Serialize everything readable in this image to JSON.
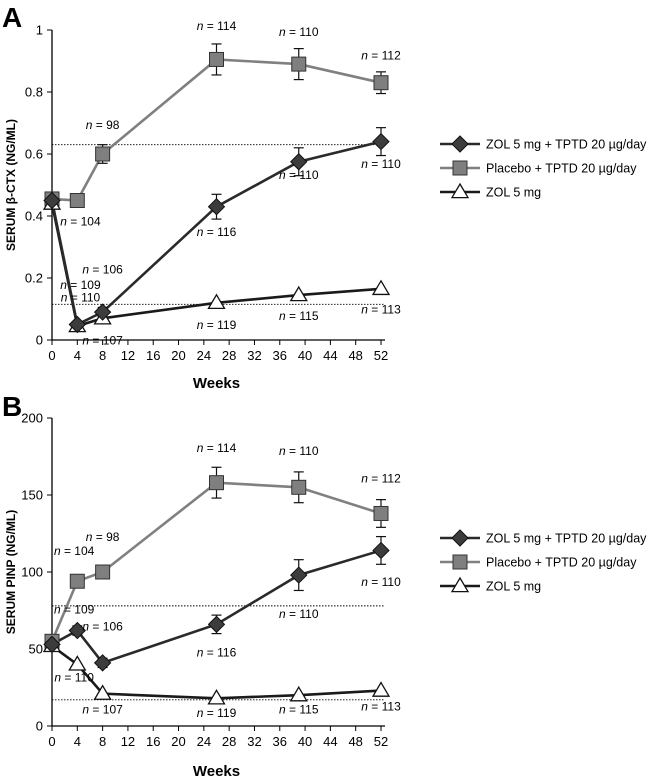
{
  "chart_data": [
    {
      "panel": "A",
      "type": "line",
      "xlabel": "Weeks",
      "ylabel": "SERUM β-CTX (NG/ML)",
      "xlim": [
        0,
        52
      ],
      "ylim": [
        0,
        1
      ],
      "xticks": [
        0,
        4,
        8,
        12,
        16,
        20,
        24,
        28,
        32,
        36,
        40,
        44,
        48,
        52
      ],
      "yticks": [
        "0",
        "0.2",
        "0.4",
        "0.6",
        "0.8",
        "1"
      ],
      "ytick_values": [
        0,
        0.2,
        0.4,
        0.6,
        0.8,
        1.0
      ],
      "reference_lines": [
        0.63,
        0.115
      ],
      "legend_position": "right",
      "series": [
        {
          "name": "ZOL 5 mg + TPTD 20 µg/day",
          "marker": "diamond",
          "color": "#3c3c3c",
          "line_color": "#2a2a2a",
          "points": [
            {
              "x": 0,
              "y": 0.45,
              "err": 0.02
            },
            {
              "x": 4,
              "y": 0.05,
              "err": 0.01
            },
            {
              "x": 8,
              "y": 0.09,
              "err": 0.015
            },
            {
              "x": 26,
              "y": 0.43,
              "err": 0.04
            },
            {
              "x": 39,
              "y": 0.575,
              "err": 0.045
            },
            {
              "x": 52,
              "y": 0.64,
              "err": 0.045
            }
          ]
        },
        {
          "name": "Placebo + TPTD 20 µg/day",
          "marker": "square",
          "color": "#7f7f7f",
          "line_color": "#808080",
          "points": [
            {
              "x": 0,
              "y": 0.455,
              "err": 0.02
            },
            {
              "x": 4,
              "y": 0.45,
              "err": 0.02
            },
            {
              "x": 8,
              "y": 0.6,
              "err": 0.03
            },
            {
              "x": 26,
              "y": 0.905,
              "err": 0.05
            },
            {
              "x": 39,
              "y": 0.89,
              "err": 0.05
            },
            {
              "x": 52,
              "y": 0.83,
              "err": 0.035
            }
          ]
        },
        {
          "name": "ZOL 5 mg",
          "marker": "triangle",
          "color": "#ffffff",
          "line_color": "#1a1a1a",
          "points": [
            {
              "x": 0,
              "y": 0.44,
              "err": 0
            },
            {
              "x": 4,
              "y": 0.045,
              "err": 0
            },
            {
              "x": 8,
              "y": 0.07,
              "err": 0
            },
            {
              "x": 26,
              "y": 0.12,
              "err": 0
            },
            {
              "x": 39,
              "y": 0.145,
              "err": 0
            },
            {
              "x": 52,
              "y": 0.165,
              "err": 0
            }
          ]
        }
      ],
      "annotations": [
        {
          "text": "n = 114",
          "x": 26,
          "y": 1.0
        },
        {
          "text": "n = 110",
          "x": 39,
          "y": 0.98
        },
        {
          "text": "n = 112",
          "x": 52,
          "y": 0.905
        },
        {
          "text": "n = 98",
          "x": 8,
          "y": 0.68
        },
        {
          "text": "n = 104",
          "x": 4.5,
          "y": 0.37
        },
        {
          "text": "n = 110",
          "x": 52,
          "y": 0.555
        },
        {
          "text": "n = 110",
          "x": 39,
          "y": 0.52
        },
        {
          "text": "n = 116",
          "x": 26,
          "y": 0.335
        },
        {
          "text": "n = 106",
          "x": 8,
          "y": 0.215
        },
        {
          "text": "n = 109",
          "x": 4.5,
          "y": 0.165
        },
        {
          "text": "n = 110",
          "x": 4.5,
          "y": 0.125
        },
        {
          "text": "n = 107",
          "x": 8,
          "y": -0.015
        },
        {
          "text": "n = 119",
          "x": 26,
          "y": 0.035
        },
        {
          "text": "n = 115",
          "x": 39,
          "y": 0.065
        },
        {
          "text": "n = 113",
          "x": 52,
          "y": 0.085
        }
      ]
    },
    {
      "panel": "B",
      "type": "line",
      "xlabel": "Weeks",
      "ylabel": "SERUM PINP (NG/ML)",
      "xlim": [
        0,
        52
      ],
      "ylim": [
        0,
        200
      ],
      "xticks": [
        0,
        4,
        8,
        12,
        16,
        20,
        24,
        28,
        32,
        36,
        40,
        44,
        48,
        52
      ],
      "yticks": [
        "0",
        "50",
        "100",
        "150",
        "200"
      ],
      "ytick_values": [
        0,
        50,
        100,
        150,
        200
      ],
      "reference_lines": [
        78,
        17
      ],
      "legend_position": "right",
      "series": [
        {
          "name": "ZOL 5 mg + TPTD 20 µg/day",
          "marker": "diamond",
          "color": "#3c3c3c",
          "line_color": "#2a2a2a",
          "points": [
            {
              "x": 0,
              "y": 53,
              "err": 3
            },
            {
              "x": 4,
              "y": 62,
              "err": 3
            },
            {
              "x": 8,
              "y": 41,
              "err": 3
            },
            {
              "x": 26,
              "y": 66,
              "err": 6
            },
            {
              "x": 39,
              "y": 98,
              "err": 10
            },
            {
              "x": 52,
              "y": 114,
              "err": 9
            }
          ]
        },
        {
          "name": "Placebo + TPTD 20 µg/day",
          "marker": "square",
          "color": "#7f7f7f",
          "line_color": "#808080",
          "points": [
            {
              "x": 0,
              "y": 55,
              "err": 3
            },
            {
              "x": 4,
              "y": 94,
              "err": 4
            },
            {
              "x": 8,
              "y": 100,
              "err": 4
            },
            {
              "x": 26,
              "y": 158,
              "err": 10
            },
            {
              "x": 39,
              "y": 155,
              "err": 10
            },
            {
              "x": 52,
              "y": 138,
              "err": 9
            }
          ]
        },
        {
          "name": "ZOL 5 mg",
          "marker": "triangle",
          "color": "#ffffff",
          "line_color": "#1a1a1a",
          "points": [
            {
              "x": 0,
              "y": 52,
              "err": 0
            },
            {
              "x": 4,
              "y": 40,
              "err": 0
            },
            {
              "x": 8,
              "y": 21,
              "err": 0
            },
            {
              "x": 26,
              "y": 18,
              "err": 0
            },
            {
              "x": 39,
              "y": 20,
              "err": 0
            },
            {
              "x": 52,
              "y": 23,
              "err": 0
            }
          ]
        }
      ],
      "annotations": [
        {
          "text": "n = 114",
          "x": 26,
          "y": 178
        },
        {
          "text": "n = 110",
          "x": 39,
          "y": 176
        },
        {
          "text": "n = 112",
          "x": 52,
          "y": 158
        },
        {
          "text": "n = 104",
          "x": 3.5,
          "y": 111
        },
        {
          "text": "n = 98",
          "x": 8,
          "y": 120
        },
        {
          "text": "n = 110",
          "x": 52,
          "y": 91
        },
        {
          "text": "n = 110",
          "x": 39,
          "y": 70
        },
        {
          "text": "n = 109",
          "x": 3.5,
          "y": 73
        },
        {
          "text": "n = 106",
          "x": 8,
          "y": 62
        },
        {
          "text": "n = 116",
          "x": 26,
          "y": 45
        },
        {
          "text": "n = 110",
          "x": 3.5,
          "y": 29
        },
        {
          "text": "n = 107",
          "x": 8,
          "y": 8
        },
        {
          "text": "n = 119",
          "x": 26,
          "y": 6
        },
        {
          "text": "n = 115",
          "x": 39,
          "y": 8
        },
        {
          "text": "n = 113",
          "x": 52,
          "y": 10
        }
      ]
    }
  ]
}
